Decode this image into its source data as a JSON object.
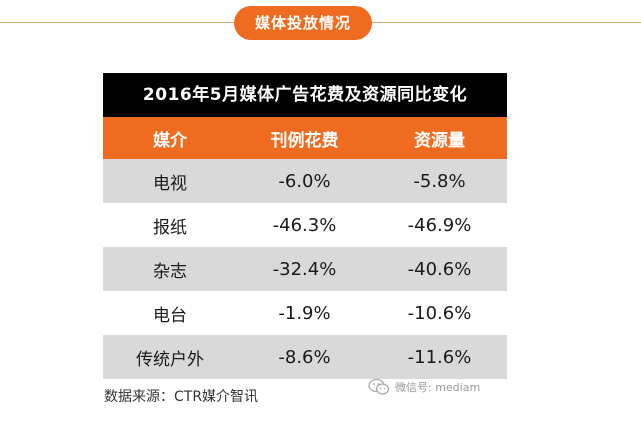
{
  "section": {
    "title": "媒体投放情况"
  },
  "table": {
    "title": "2016年5月媒体广告花费及资源同比变化",
    "headers": [
      "媒介",
      "刊例花费",
      "资源量"
    ],
    "rows": [
      [
        "电视",
        "-6.0%",
        "-5.8%"
      ],
      [
        "报纸",
        "-46.3%",
        "-46.9%"
      ],
      [
        "杂志",
        "-32.4%",
        "-40.6%"
      ],
      [
        "电台",
        "-1.9%",
        "-10.6%"
      ],
      [
        "传统户外",
        "-8.6%",
        "-11.6%"
      ]
    ]
  },
  "chart_data": {
    "type": "table",
    "title": "2016年5月媒体广告花费及资源同比变化",
    "columns": [
      "媒介",
      "刊例花费",
      "资源量"
    ],
    "categories": [
      "电视",
      "报纸",
      "杂志",
      "电台",
      "传统户外"
    ],
    "series": [
      {
        "name": "刊例花费",
        "values": [
          -6.0,
          -46.3,
          -32.4,
          -1.9,
          -8.6
        ],
        "unit": "%"
      },
      {
        "name": "资源量",
        "values": [
          -5.8,
          -46.9,
          -40.6,
          -10.6,
          -11.6
        ],
        "unit": "%"
      }
    ]
  },
  "footer": {
    "source": "数据来源：CTR媒介智讯",
    "watermark": "微信号: mediam",
    "watermark_icon": "wechat-icon"
  },
  "colors": {
    "accent": "#ef6b1f",
    "title_bar": "#000000",
    "row_shade": "#d9d9d9"
  }
}
